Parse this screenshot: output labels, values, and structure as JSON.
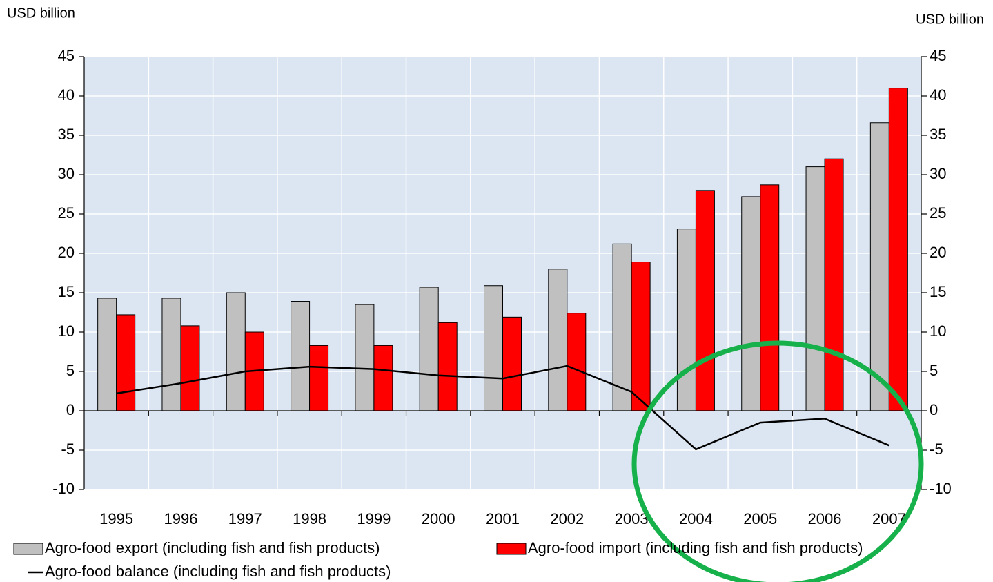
{
  "chart_data": {
    "type": "bar",
    "y_label": "USD billion",
    "y2_label": "USD billion",
    "categories": [
      "1995",
      "1996",
      "1997",
      "1998",
      "1999",
      "2000",
      "2001",
      "2002",
      "2003",
      "2004",
      "2005",
      "2006",
      "2007"
    ],
    "series": [
      {
        "name": "Agro-food export (including fish and fish products)",
        "type": "bar",
        "color": "#c0c0c0",
        "values": [
          14.3,
          14.3,
          15.0,
          13.9,
          13.5,
          15.7,
          15.9,
          18.0,
          21.2,
          23.1,
          27.2,
          31.0,
          36.6
        ]
      },
      {
        "name": "Agro-food import (including fish and fish products)",
        "type": "bar",
        "color": "#ff0000",
        "values": [
          12.2,
          10.8,
          10.0,
          8.3,
          8.3,
          11.2,
          11.9,
          12.4,
          18.9,
          28.0,
          28.7,
          32.0,
          41.0
        ]
      },
      {
        "name": "Agro-food balance (including fish and fish products)",
        "type": "line",
        "color": "#000000",
        "values": [
          2.2,
          3.5,
          5.0,
          5.6,
          5.3,
          4.5,
          4.1,
          5.7,
          2.4,
          -4.9,
          -1.5,
          -1.0,
          -4.4
        ]
      }
    ],
    "ylim": [
      -10,
      45
    ],
    "yticks": [
      -10,
      -5,
      0,
      5,
      10,
      15,
      20,
      25,
      30,
      35,
      40,
      45
    ],
    "y2lim": [
      -10,
      45
    ],
    "y2ticks": [
      -10,
      -5,
      0,
      5,
      10,
      15,
      20,
      25,
      30,
      35,
      40,
      45
    ],
    "grid": true,
    "plot_background": "#dce6f2"
  }
}
